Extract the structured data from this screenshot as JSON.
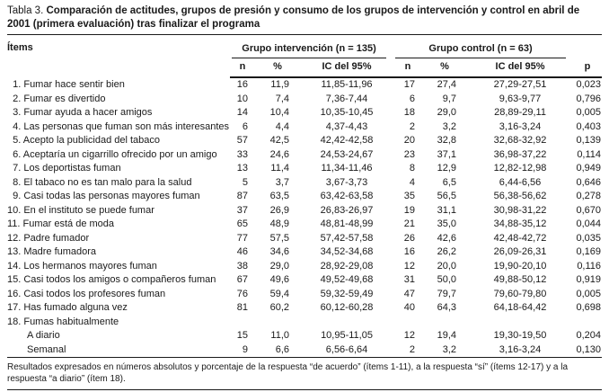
{
  "title": {
    "prefix": "Tabla 3.",
    "text": "Comparación de actitudes, grupos de presión y consumo de los grupos de intervención y control en abril de 2001 (primera evaluación) tras finalizar el programa"
  },
  "table": {
    "items_header": "Ítems",
    "group_headers": [
      {
        "label": "Grupo intervención (n = 135)"
      },
      {
        "label": "Grupo control (n = 63)"
      }
    ],
    "sub_headers": [
      "n",
      "%",
      "IC del 95%",
      "n",
      "%",
      "IC del 95%",
      "p"
    ],
    "rows": [
      {
        "label": " 1. Fumar hace sentir bien",
        "indent": false,
        "values": [
          "16",
          "11,9",
          "11,85-11,96",
          "17",
          "27,4",
          "27,29-27,51",
          "0,023"
        ]
      },
      {
        "label": " 2. Fumar es divertido",
        "indent": false,
        "values": [
          "10",
          "7,4",
          "7,36-7,44",
          "6",
          "9,7",
          "9,63-9,77",
          "0,796"
        ]
      },
      {
        "label": " 3. Fumar ayuda a hacer amigos",
        "indent": false,
        "values": [
          "14",
          "10,4",
          "10,35-10,45",
          "18",
          "29,0",
          "28,89-29,11",
          "0,005"
        ]
      },
      {
        "label": " 4. Las personas que fuman son más interesantes",
        "indent": false,
        "values": [
          "6",
          "4,4",
          "4,37-4,43",
          "2",
          "3,2",
          "3,16-3,24",
          "0,403"
        ]
      },
      {
        "label": " 5. Acepto la publicidad del tabaco",
        "indent": false,
        "values": [
          "57",
          "42,5",
          "42,42-42,58",
          "20",
          "32,8",
          "32,68-32,92",
          "0,139"
        ]
      },
      {
        "label": " 6. Aceptaría un cigarrillo ofrecido por un amigo",
        "indent": false,
        "values": [
          "33",
          "24,6",
          "24,53-24,67",
          "23",
          "37,1",
          "36,98-37,22",
          "0,114"
        ]
      },
      {
        "label": " 7. Los deportistas fuman",
        "indent": false,
        "values": [
          "13",
          "11,4",
          "11,34-11,46",
          "8",
          "12,9",
          "12,82-12,98",
          "0,949"
        ]
      },
      {
        "label": " 8. El tabaco no es tan malo para la salud",
        "indent": false,
        "values": [
          "5",
          "3,7",
          "3,67-3,73",
          "4",
          "6,5",
          "6,44-6,56",
          "0,646"
        ]
      },
      {
        "label": " 9. Casi todas las personas mayores fuman",
        "indent": false,
        "values": [
          "87",
          "63,5",
          "63,42-63,58",
          "35",
          "56,5",
          "56,38-56,62",
          "0,278"
        ]
      },
      {
        "label": "10. En el instituto se puede fumar",
        "indent": false,
        "values": [
          "37",
          "26,9",
          "26,83-26,97",
          "19",
          "31,1",
          "30,98-31,22",
          "0,670"
        ]
      },
      {
        "label": "11. Fumar está de moda",
        "indent": false,
        "values": [
          "65",
          "48,9",
          "48,81-48,99",
          "21",
          "35,0",
          "34,88-35,12",
          "0,044"
        ]
      },
      {
        "label": "12. Padre fumador",
        "indent": false,
        "values": [
          "77",
          "57,5",
          "57,42-57,58",
          "26",
          "42,6",
          "42,48-42,72",
          "0,035"
        ]
      },
      {
        "label": "13. Madre fumadora",
        "indent": false,
        "values": [
          "46",
          "34,6",
          "34,52-34,68",
          "16",
          "26,2",
          "26,09-26,31",
          "0,169"
        ]
      },
      {
        "label": "14. Los hermanos mayores fuman",
        "indent": false,
        "values": [
          "38",
          "29,0",
          "28,92-29,08",
          "12",
          "20,0",
          "19,90-20,10",
          "0,116"
        ]
      },
      {
        "label": "15. Casi todos los amigos o compañeros fuman",
        "indent": false,
        "values": [
          "67",
          "49,6",
          "49,52-49,68",
          "31",
          "50,0",
          "49,88-50,12",
          "0,919"
        ]
      },
      {
        "label": "16. Casi todos los profesores fuman",
        "indent": false,
        "values": [
          "76",
          "59,4",
          "59,32-59,49",
          "47",
          "79,7",
          "79,60-79,80",
          "0,005"
        ]
      },
      {
        "label": "17. Has fumado alguna vez",
        "indent": false,
        "values": [
          "81",
          "60,2",
          "60,12-60,28",
          "40",
          "64,3",
          "64,18-64,42",
          "0,698"
        ]
      },
      {
        "label": "18. Fumas habitualmente",
        "indent": false,
        "values": [
          "",
          "",
          "",
          "",
          "",
          "",
          ""
        ]
      },
      {
        "label": "A diario",
        "indent": true,
        "values": [
          "15",
          "11,0",
          "10,95-11,05",
          "12",
          "19,4",
          "19,30-19,50",
          "0,204"
        ]
      },
      {
        "label": "Semanal",
        "indent": true,
        "values": [
          "9",
          "6,6",
          "6,56-6,64",
          "2",
          "3,2",
          "3,16-3,24",
          "0,130"
        ]
      }
    ]
  },
  "footnote": "Resultados expresados en números absolutos y porcentaje de la respuesta “de acuerdo” (ítems 1-11), a la respuesta “sí” (ítems 12-17) y a la respuesta “a diario” (ítem 18)."
}
